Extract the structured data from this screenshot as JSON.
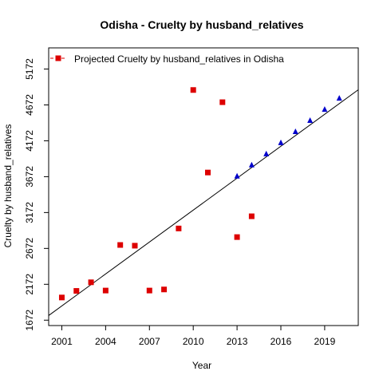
{
  "chart_data": {
    "type": "scatter",
    "title": "Odisha  -  Cruelty by husband_relatives",
    "xlabel": "Year",
    "ylabel": "Cruelty by husband_relatives",
    "xlim": [
      2000.1,
      2021.3
    ],
    "ylim": [
      1597,
      5467
    ],
    "x_ticks": [
      2001,
      2004,
      2007,
      2010,
      2013,
      2016,
      2019
    ],
    "y_ticks": [
      1672,
      2172,
      2672,
      3172,
      3672,
      4172,
      4672,
      5172
    ],
    "grid": false,
    "legend": {
      "position": "top-left",
      "entries": [
        {
          "label": "Projected  Cruelty by husband_relatives  in  Odisha",
          "marker": "square",
          "color": "#dd0000",
          "line": "dashed"
        }
      ]
    },
    "series": [
      {
        "name": "Projected  Cruelty by husband_relatives  in  Odisha",
        "marker": "square",
        "color": "#dd0000",
        "points": [
          [
            2001,
            1988
          ],
          [
            2002,
            2080
          ],
          [
            2003,
            2200
          ],
          [
            2004,
            2085
          ],
          [
            2005,
            2720
          ],
          [
            2006,
            2710
          ],
          [
            2007,
            2085
          ],
          [
            2008,
            2100
          ],
          [
            2009,
            2950
          ],
          [
            2010,
            4880
          ],
          [
            2011,
            3730
          ],
          [
            2012,
            4710
          ],
          [
            2013,
            2830
          ],
          [
            2014,
            3120
          ]
        ]
      },
      {
        "marker": "triangle",
        "color": "#0000cc",
        "points": [
          [
            2013,
            3680
          ],
          [
            2014,
            3835
          ],
          [
            2015,
            3990
          ],
          [
            2016,
            4145
          ],
          [
            2017,
            4300
          ],
          [
            2018,
            4455
          ],
          [
            2019,
            4610
          ],
          [
            2020,
            4765
          ]
        ]
      }
    ],
    "trend_line": {
      "color": "#000000",
      "from": [
        2000.1,
        1737
      ],
      "to": [
        2021.3,
        4883
      ]
    }
  }
}
